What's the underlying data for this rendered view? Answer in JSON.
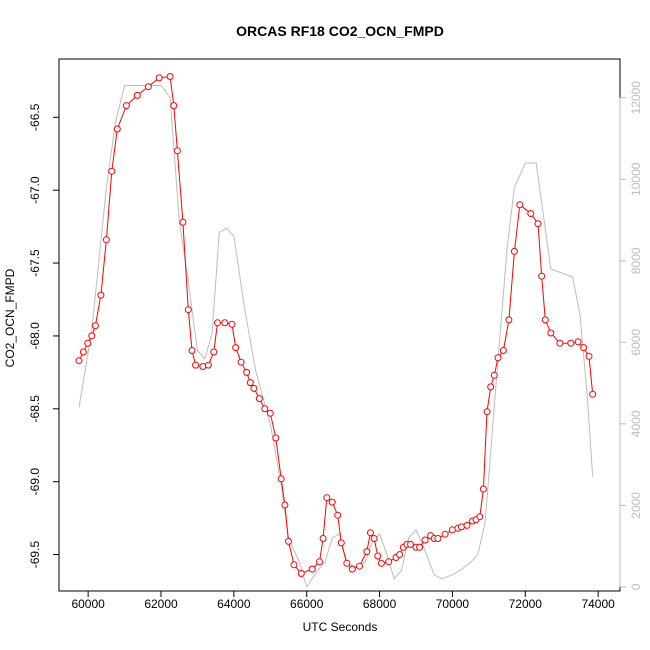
{
  "chart_data": {
    "type": "line",
    "title": "ORCAS RF18 CO2_OCN_FMPD",
    "xlabel": "UTC Seconds",
    "ylabel": "CO2_OCN_FMPD",
    "xlim": [
      59200,
      74600
    ],
    "ylim": [
      -69.75,
      -66.1
    ],
    "y2lim": [
      -100,
      12950
    ],
    "x_ticks": [
      60000,
      62000,
      64000,
      66000,
      68000,
      70000,
      72000,
      74000
    ],
    "y_ticks": [
      -66.5,
      -67.0,
      -67.5,
      -68.0,
      -68.5,
      -69.0,
      -69.5
    ],
    "y2_ticks": [
      0,
      2000,
      4000,
      6000,
      8000,
      10000,
      12000
    ],
    "grid": false,
    "colors": {
      "series": "#ff0000",
      "altitude": "#bdbdbd",
      "axis": "#000000"
    },
    "series": [
      {
        "axis": "left",
        "style": "line+circles",
        "color": "#ff0000",
        "x": [
          59750,
          59870,
          59990,
          60100,
          60200,
          60350,
          60500,
          60650,
          60800,
          61050,
          61350,
          61650,
          61950,
          62250,
          62350,
          62450,
          62600,
          62750,
          62850,
          62950,
          63150,
          63300,
          63450,
          63550,
          63750,
          63950,
          64050,
          64200,
          64350,
          64450,
          64550,
          64700,
          64850,
          65000,
          65150,
          65300,
          65400,
          65500,
          65650,
          65850,
          66150,
          66350,
          66450,
          66550,
          66700,
          66850,
          66950,
          67100,
          67250,
          67450,
          67650,
          67750,
          67850,
          67950,
          68050,
          68250,
          68450,
          68550,
          68650,
          68750,
          68850,
          69000,
          69100,
          69250,
          69400,
          69500,
          69600,
          69800,
          70000,
          70150,
          70250,
          70400,
          70550,
          70650,
          70750,
          70850,
          70950,
          71050,
          71150,
          71250,
          71400,
          71550,
          71700,
          71850,
          72150,
          72350,
          72450,
          72550,
          72700,
          72950,
          73250,
          73450,
          73600,
          73750,
          73850
        ],
        "y": [
          -68.17,
          -68.11,
          -68.05,
          -68.0,
          -67.93,
          -67.72,
          -67.34,
          -66.87,
          -66.58,
          -66.42,
          -66.35,
          -66.29,
          -66.23,
          -66.22,
          -66.42,
          -66.73,
          -67.22,
          -67.82,
          -68.1,
          -68.2,
          -68.21,
          -68.2,
          -68.11,
          -67.91,
          -67.91,
          -67.92,
          -68.08,
          -68.18,
          -68.25,
          -68.32,
          -68.36,
          -68.43,
          -68.5,
          -68.53,
          -68.7,
          -68.98,
          -69.16,
          -69.41,
          -69.57,
          -69.63,
          -69.6,
          -69.55,
          -69.39,
          -69.11,
          -69.14,
          -69.23,
          -69.42,
          -69.56,
          -69.6,
          -69.58,
          -69.48,
          -69.35,
          -69.39,
          -69.51,
          -69.56,
          -69.55,
          -69.52,
          -69.5,
          -69.45,
          -69.43,
          -69.43,
          -69.45,
          -69.45,
          -69.4,
          -69.37,
          -69.39,
          -69.39,
          -69.36,
          -69.33,
          -69.32,
          -69.31,
          -69.3,
          -69.27,
          -69.26,
          -69.24,
          -69.05,
          -68.52,
          -68.35,
          -68.27,
          -68.15,
          -68.1,
          -67.89,
          -67.42,
          -67.1,
          -67.16,
          -67.23,
          -67.59,
          -67.89,
          -67.98,
          -68.05,
          -68.05,
          -68.04,
          -68.08,
          -68.14,
          -68.4
        ]
      },
      {
        "axis": "right",
        "style": "line",
        "color": "#bdbdbd",
        "x": [
          59750,
          60100,
          60500,
          60750,
          61000,
          61500,
          62000,
          62250,
          62500,
          62750,
          63000,
          63200,
          63400,
          63600,
          63800,
          64000,
          64300,
          64600,
          65000,
          65300,
          65500,
          65800,
          66000,
          66300,
          66500,
          66700,
          66900,
          67100,
          67300,
          67600,
          67800,
          68000,
          68200,
          68400,
          68600,
          68800,
          69000,
          69200,
          69500,
          69700,
          70000,
          70200,
          70500,
          70700,
          70900,
          71200,
          71500,
          71700,
          72000,
          72300,
          72500,
          72700,
          73000,
          73300,
          73500,
          73700,
          73850
        ],
        "y": [
          4400,
          6300,
          9800,
          11400,
          12300,
          12300,
          12300,
          12000,
          9000,
          7500,
          5800,
          5600,
          6200,
          8700,
          8800,
          8600,
          6800,
          5300,
          4000,
          2500,
          1200,
          600,
          0,
          400,
          600,
          1200,
          1300,
          600,
          500,
          600,
          1100,
          1300,
          800,
          200,
          400,
          1200,
          1400,
          1000,
          300,
          200,
          300,
          400,
          600,
          800,
          1600,
          5000,
          8300,
          9800,
          10400,
          10400,
          9100,
          7800,
          7700,
          7600,
          6700,
          4700,
          2700
        ]
      }
    ]
  }
}
